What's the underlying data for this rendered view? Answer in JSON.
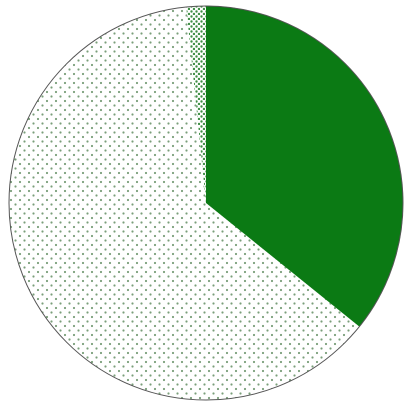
{
  "chart_data": {
    "type": "pie",
    "start_angle_deg": 0,
    "direction": "clockwise",
    "slices": [
      {
        "value": 35.8,
        "fill": "#0b7a14",
        "pattern": "solid"
      },
      {
        "value": 62.6,
        "fill": "#ffffff",
        "pattern": "sparse-dots",
        "dot_color": "#7a9f7a"
      },
      {
        "value": 1.6,
        "fill": "#ffffff",
        "pattern": "dense-dots",
        "dot_color": "#3f8f45"
      }
    ],
    "outline_color": "#555555"
  }
}
